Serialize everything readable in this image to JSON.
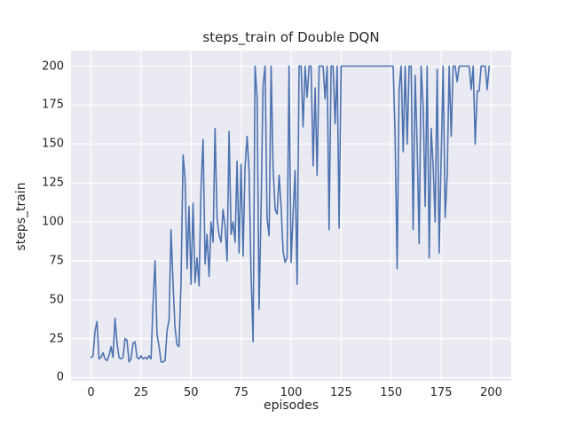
{
  "chart_data": {
    "type": "line",
    "title": "steps_train of Double DQN",
    "xlabel": "episodes",
    "ylabel": "steps_train",
    "x_start": 0,
    "x_step": 1,
    "xlim": [
      -10,
      210
    ],
    "ylim": [
      -2,
      210
    ],
    "xticks": [
      0,
      25,
      50,
      75,
      100,
      125,
      150,
      175,
      200
    ],
    "yticks": [
      0,
      25,
      50,
      75,
      100,
      125,
      150,
      175,
      200
    ],
    "grid": true,
    "legend": false,
    "style": {
      "line_color": "#4c72b0",
      "plot_bg": "#eaeaf2",
      "grid_color": "#ffffff",
      "text_color": "#262626",
      "figure_bg": "#ffffff"
    },
    "values": [
      13,
      14,
      30,
      36,
      12,
      13,
      16,
      12,
      11,
      14,
      20,
      13,
      38,
      22,
      13,
      12,
      13,
      25,
      24,
      10,
      12,
      22,
      23,
      13,
      12,
      14,
      12,
      13,
      12,
      14,
      12,
      47,
      75,
      28,
      20,
      10,
      10,
      11,
      30,
      37,
      95,
      60,
      32,
      21,
      20,
      62,
      143,
      128,
      70,
      110,
      60,
      112,
      61,
      77,
      59,
      121,
      153,
      73,
      92,
      65,
      100,
      87,
      160,
      102,
      92,
      87,
      108,
      97,
      75,
      158,
      92,
      100,
      87,
      139,
      80,
      137,
      78,
      135,
      155,
      132,
      66,
      23,
      200,
      180,
      44,
      109,
      188,
      200,
      102,
      91,
      200,
      135,
      108,
      105,
      130,
      110,
      81,
      74,
      77,
      200,
      74,
      106,
      133,
      60,
      200,
      200,
      161,
      200,
      180,
      200,
      200,
      136,
      186,
      130,
      200,
      200,
      200,
      179,
      200,
      95,
      200,
      200,
      163,
      200,
      96,
      200,
      200,
      200,
      200,
      200,
      200,
      200,
      200,
      200,
      200,
      200,
      200,
      200,
      200,
      200,
      200,
      200,
      200,
      200,
      200,
      200,
      200,
      200,
      200,
      200,
      200,
      200,
      156,
      70,
      185,
      200,
      145,
      200,
      150,
      200,
      200,
      95,
      194,
      150,
      86,
      200,
      174,
      110,
      200,
      77,
      160,
      135,
      100,
      198,
      80,
      141,
      200,
      103,
      130,
      200,
      155,
      200,
      200,
      190,
      200,
      200,
      200,
      200,
      200,
      200,
      185,
      200,
      150,
      184,
      184,
      200,
      200,
      200,
      185,
      200
    ]
  }
}
